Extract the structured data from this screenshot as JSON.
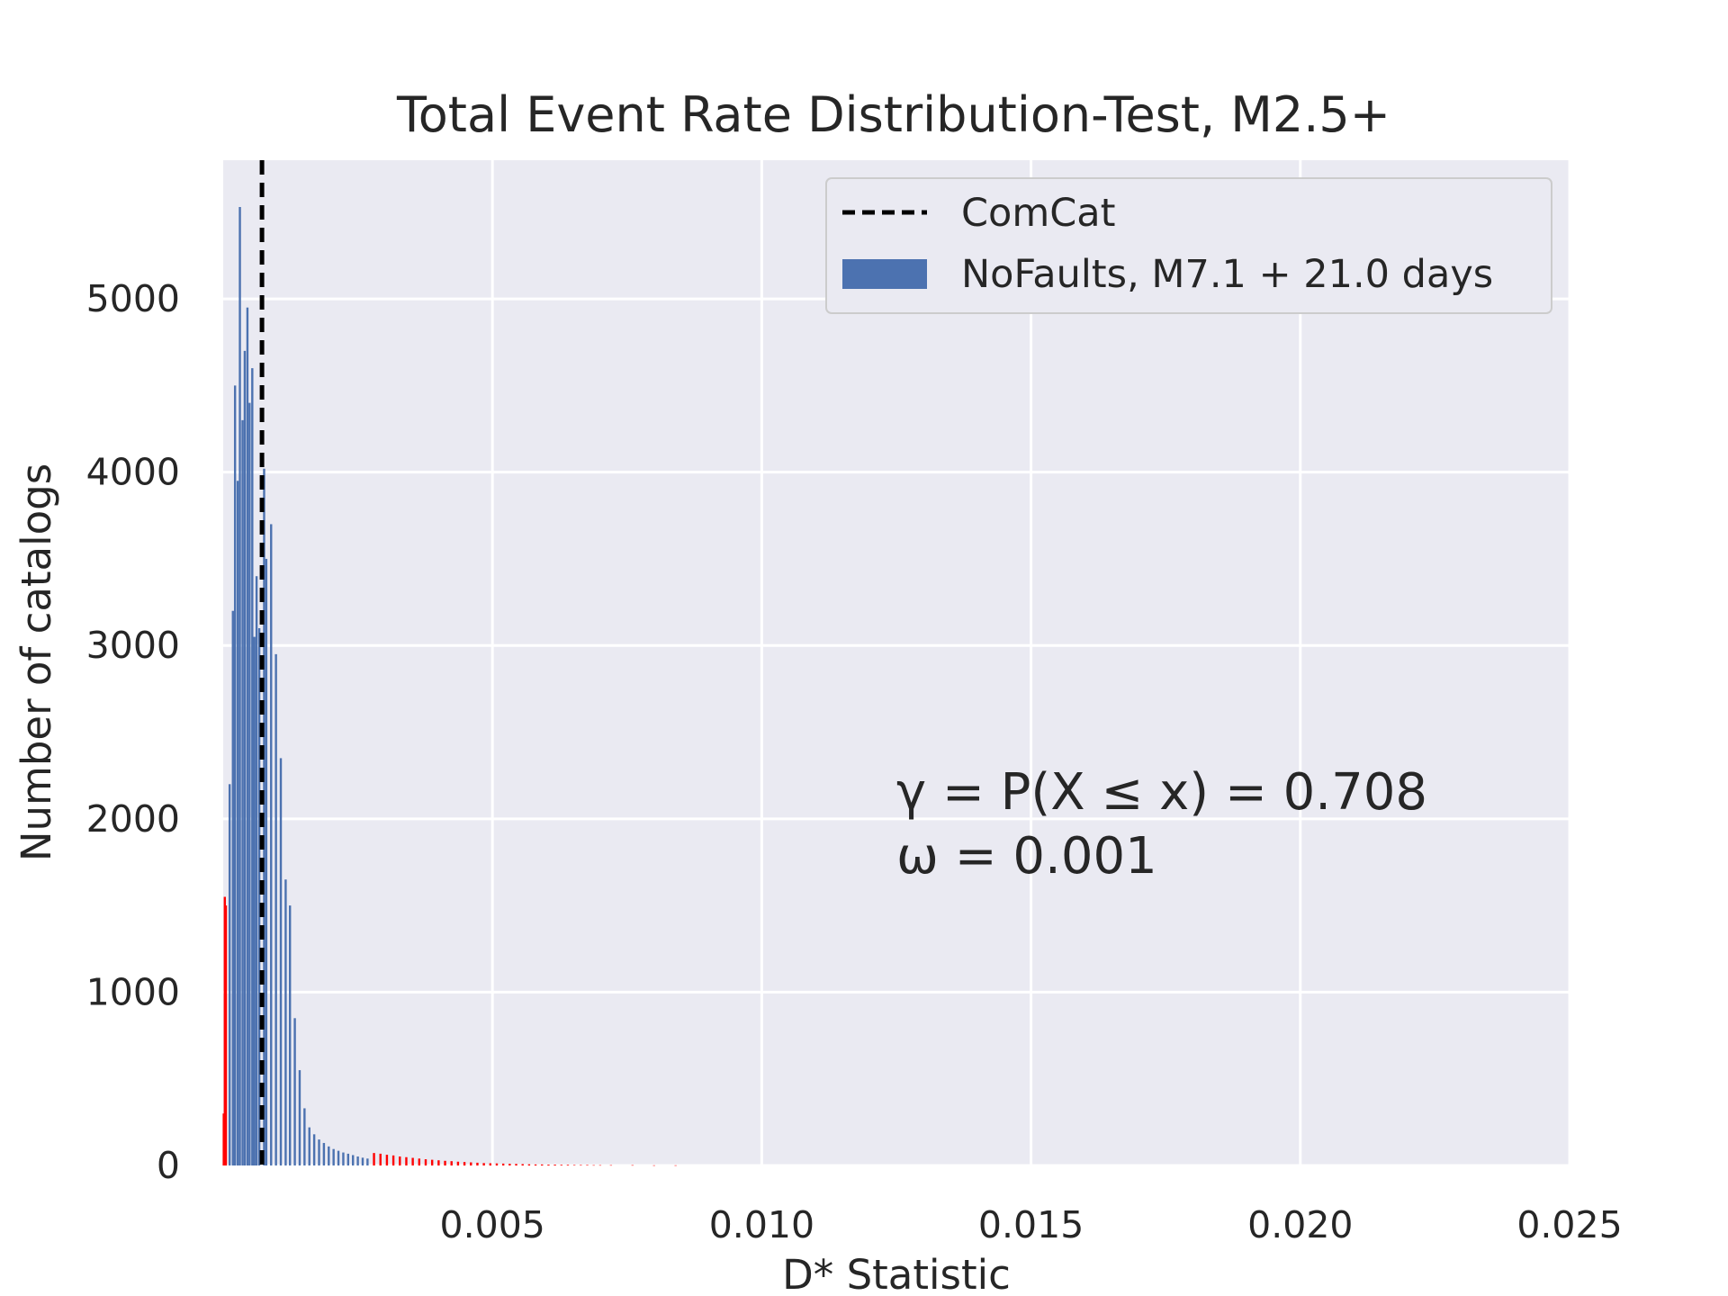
{
  "chart_data": {
    "type": "bar",
    "title": "Total Event Rate Distribution-Test, M2.5+",
    "xlabel": "D* Statistic",
    "ylabel": "Number of catalogs",
    "xlim": [
      0.0,
      0.025
    ],
    "ylim": [
      0,
      5800
    ],
    "x_ticks": [
      "0.005",
      "0.010",
      "0.015",
      "0.020",
      "0.025"
    ],
    "x_tick_values": [
      0.005,
      0.01,
      0.015,
      0.02,
      0.025
    ],
    "y_ticks": [
      "0",
      "1000",
      "2000",
      "3000",
      "4000",
      "5000"
    ],
    "y_tick_values": [
      0,
      1000,
      2000,
      3000,
      4000,
      5000
    ],
    "grid": true,
    "legend_position": "top-right",
    "observed_line": {
      "name": "ComCat",
      "x": 0.00072,
      "style": "dashed",
      "color": "#000000"
    },
    "series": [
      {
        "name": "NoFaults, M7.1 + 21.0 days",
        "color": "#4c72b0",
        "points": [
          [
            0.00012,
            2200
          ],
          [
            0.00018,
            3200
          ],
          [
            0.00022,
            4500
          ],
          [
            0.00027,
            3950
          ],
          [
            0.00031,
            5530
          ],
          [
            0.00036,
            4300
          ],
          [
            0.0004,
            4700
          ],
          [
            0.00045,
            4950
          ],
          [
            0.00049,
            4400
          ],
          [
            0.00054,
            4600
          ],
          [
            0.00058,
            3050
          ],
          [
            0.00062,
            3400
          ],
          [
            0.00067,
            3100
          ],
          [
            0.00076,
            4020
          ],
          [
            0.0008,
            3500
          ],
          [
            0.00089,
            3700
          ],
          [
            0.00098,
            2950
          ],
          [
            0.00107,
            2350
          ],
          [
            0.00116,
            1650
          ],
          [
            0.00124,
            1500
          ],
          [
            0.00133,
            850
          ],
          [
            0.00142,
            550
          ],
          [
            0.00151,
            330
          ],
          [
            0.0016,
            220
          ],
          [
            0.00169,
            180
          ],
          [
            0.00178,
            150
          ],
          [
            0.00187,
            130
          ],
          [
            0.00196,
            110
          ],
          [
            0.00205,
            95
          ],
          [
            0.00214,
            85
          ],
          [
            0.00223,
            75
          ],
          [
            0.00232,
            68
          ],
          [
            0.00241,
            60
          ],
          [
            0.0025,
            52
          ],
          [
            0.00259,
            45
          ],
          [
            0.00268,
            40
          ]
        ]
      },
      {
        "name": "",
        "color": "#ff0000",
        "points": [
          [
            1e-05,
            300
          ],
          [
            3e-05,
            1550
          ],
          [
            5e-05,
            1500
          ],
          [
            0.0028,
            72
          ],
          [
            0.00292,
            68
          ],
          [
            0.00304,
            62
          ],
          [
            0.00316,
            58
          ],
          [
            0.00328,
            52
          ],
          [
            0.0034,
            48
          ],
          [
            0.00352,
            44
          ],
          [
            0.00364,
            40
          ],
          [
            0.00376,
            36
          ],
          [
            0.00388,
            33
          ],
          [
            0.004,
            30
          ],
          [
            0.00412,
            27
          ],
          [
            0.00424,
            25
          ],
          [
            0.00436,
            22
          ],
          [
            0.00448,
            20
          ],
          [
            0.0046,
            18
          ],
          [
            0.00472,
            16
          ],
          [
            0.00484,
            14
          ],
          [
            0.00496,
            13
          ],
          [
            0.00508,
            12
          ],
          [
            0.0052,
            11
          ],
          [
            0.00532,
            10
          ],
          [
            0.00544,
            9
          ],
          [
            0.00556,
            8
          ],
          [
            0.00568,
            7
          ],
          [
            0.0058,
            6
          ],
          [
            0.00592,
            6
          ],
          [
            0.00604,
            5
          ],
          [
            0.00616,
            5
          ],
          [
            0.00628,
            4
          ],
          [
            0.0064,
            4
          ],
          [
            0.00652,
            3
          ],
          [
            0.00664,
            3
          ],
          [
            0.00676,
            3
          ],
          [
            0.00688,
            2
          ],
          [
            0.007,
            2
          ],
          [
            0.0072,
            2
          ],
          [
            0.0076,
            2
          ],
          [
            0.008,
            1
          ],
          [
            0.0084,
            1
          ]
        ]
      }
    ],
    "annotations": [
      {
        "text": "γ = P(X ≤ x) = 0.708",
        "x": 0.0125,
        "y": 2150
      },
      {
        "text": "ω = 0.001",
        "x": 0.0125,
        "y": 1780
      }
    ]
  }
}
